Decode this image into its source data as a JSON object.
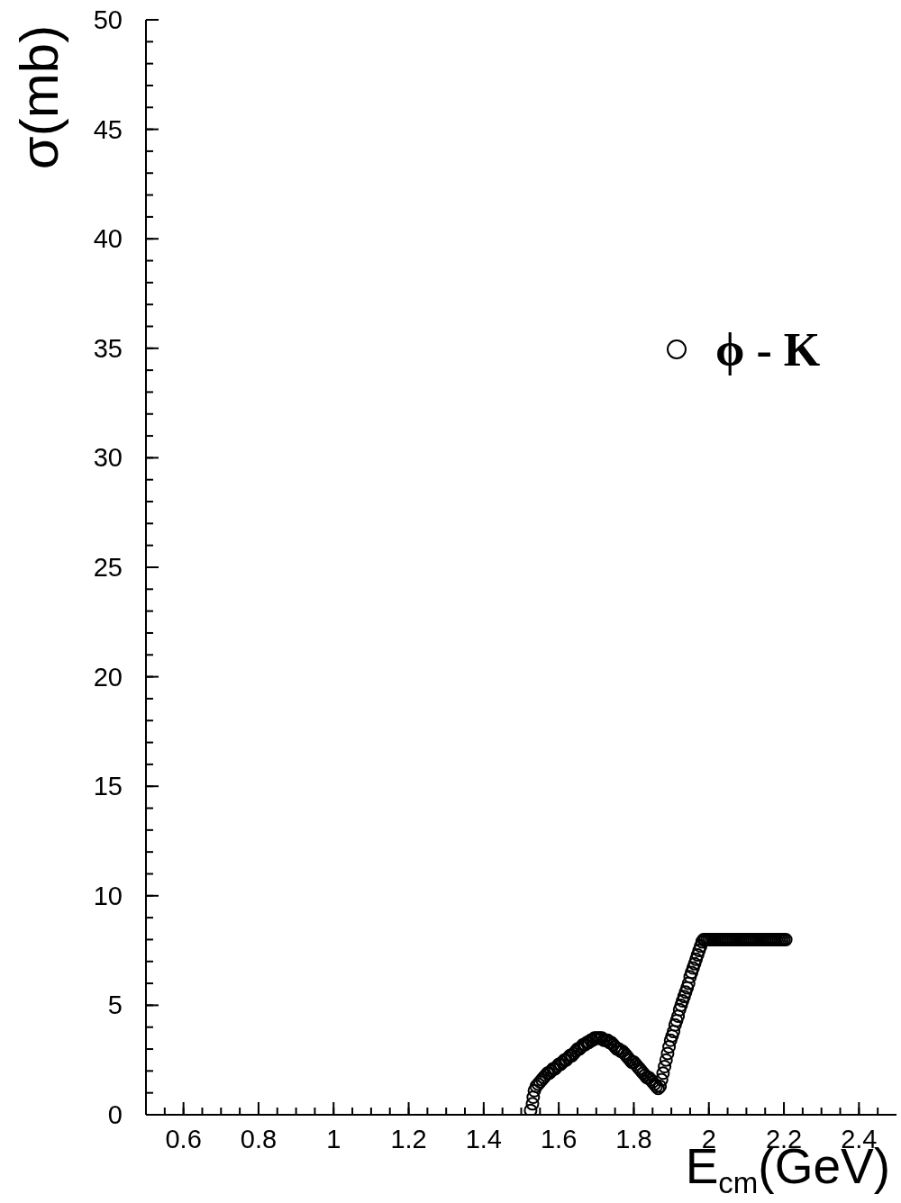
{
  "chart_data": {
    "type": "scatter",
    "xlabel": "E$_{cm}$(GeV)",
    "ylabel": "σ(mb)",
    "x": [
      1.525,
      1.53,
      1.532,
      1.535,
      1.54,
      1.545,
      1.55,
      1.555,
      1.56,
      1.565,
      1.57,
      1.575,
      1.58,
      1.585,
      1.59,
      1.595,
      1.6,
      1.605,
      1.61,
      1.615,
      1.62,
      1.625,
      1.63,
      1.635,
      1.64,
      1.645,
      1.65,
      1.655,
      1.66,
      1.665,
      1.67,
      1.675,
      1.68,
      1.685,
      1.69,
      1.695,
      1.7,
      1.705,
      1.71,
      1.715,
      1.72,
      1.725,
      1.73,
      1.735,
      1.74,
      1.745,
      1.75,
      1.755,
      1.76,
      1.765,
      1.77,
      1.775,
      1.78,
      1.785,
      1.79,
      1.795,
      1.8,
      1.805,
      1.81,
      1.815,
      1.82,
      1.825,
      1.83,
      1.835,
      1.84,
      1.845,
      1.85,
      1.855,
      1.86,
      1.865,
      1.87,
      1.874,
      1.878,
      1.882,
      1.886,
      1.89,
      1.894,
      1.898,
      1.902,
      1.906,
      1.91,
      1.914,
      1.918,
      1.922,
      1.926,
      1.93,
      1.934,
      1.938,
      1.942,
      1.946,
      1.95,
      1.954,
      1.958,
      1.962,
      1.966,
      1.97,
      1.974,
      1.978,
      1.982,
      1.986,
      1.99,
      1.995,
      2.0,
      2.005,
      2.01,
      2.015,
      2.02,
      2.025,
      2.03,
      2.035,
      2.04,
      2.045,
      2.05,
      2.055,
      2.06,
      2.065,
      2.07,
      2.075,
      2.08,
      2.085,
      2.09,
      2.095,
      2.1,
      2.105,
      2.11,
      2.115,
      2.12,
      2.125,
      2.13,
      2.135,
      2.14,
      2.145,
      2.15,
      2.155,
      2.16,
      2.165,
      2.17,
      2.175,
      2.18,
      2.185,
      2.19,
      2.195,
      2.2,
      2.205
    ],
    "series": [
      {
        "name": "ϕ - K",
        "color": "#000000",
        "values": [
          0.2,
          0.5,
          0.8,
          1.1,
          1.3,
          1.4,
          1.5,
          1.6,
          1.7,
          1.8,
          1.9,
          1.9,
          2.0,
          2.1,
          2.1,
          2.2,
          2.3,
          2.3,
          2.4,
          2.5,
          2.5,
          2.6,
          2.7,
          2.7,
          2.8,
          2.9,
          3.0,
          3.0,
          3.1,
          3.2,
          3.2,
          3.3,
          3.3,
          3.4,
          3.4,
          3.5,
          3.5,
          3.5,
          3.5,
          3.5,
          3.4,
          3.4,
          3.4,
          3.3,
          3.3,
          3.2,
          3.1,
          3.0,
          3.0,
          2.9,
          2.9,
          2.8,
          2.7,
          2.6,
          2.5,
          2.4,
          2.4,
          2.3,
          2.2,
          2.1,
          2.0,
          1.9,
          1.8,
          1.7,
          1.7,
          1.6,
          1.5,
          1.4,
          1.3,
          1.2,
          1.3,
          1.6,
          1.9,
          2.2,
          2.5,
          2.8,
          3.1,
          3.4,
          3.6,
          3.8,
          4.1,
          4.3,
          4.5,
          4.8,
          5.0,
          5.2,
          5.4,
          5.6,
          5.8,
          6.0,
          6.3,
          6.5,
          6.7,
          6.9,
          7.1,
          7.3,
          7.5,
          7.7,
          7.9,
          8.0,
          8.0,
          8.0,
          8.0,
          8.0,
          8.0,
          8.0,
          8.0,
          8.0,
          8.0,
          8.0,
          8.0,
          8.0,
          8.0,
          8.0,
          8.0,
          8.0,
          8.0,
          8.0,
          8.0,
          8.0,
          8.0,
          8.0,
          8.0,
          8.0,
          8.0,
          8.0,
          8.0,
          8.0,
          8.0,
          8.0,
          8.0,
          8.0,
          8.0,
          8.0,
          8.0,
          8.0,
          8.0,
          8.0,
          8.0,
          8.0,
          8.0,
          8.0,
          8.0,
          8.0
        ]
      }
    ],
    "xlim": [
      0.5,
      2.5
    ],
    "xticks": [
      {
        "value": 0.55,
        "label": null
      },
      0.6,
      {
        "value": 0.65,
        "label": null
      },
      {
        "value": 0.7,
        "label": null
      },
      {
        "value": 0.75,
        "label": null
      },
      0.8,
      {
        "value": 0.85,
        "label": null
      },
      {
        "value": 0.9,
        "label": null
      },
      {
        "value": 0.95,
        "label": null
      },
      1,
      {
        "value": 1.05,
        "label": null
      },
      {
        "value": 1.1,
        "label": null
      },
      {
        "value": 1.15,
        "label": null
      },
      1.2,
      {
        "value": 1.25,
        "label": null
      },
      {
        "value": 1.3,
        "label": null
      },
      {
        "value": 1.35,
        "label": null
      },
      1.4,
      {
        "value": 1.45,
        "label": null
      },
      {
        "value": 1.5,
        "label": null
      },
      {
        "value": 1.55,
        "label": null
      },
      1.6,
      {
        "value": 1.65,
        "label": null
      },
      {
        "value": 1.7,
        "label": null
      },
      {
        "value": 1.75,
        "label": null
      },
      1.8,
      {
        "value": 1.85,
        "label": null
      },
      {
        "value": 1.9,
        "label": null
      },
      {
        "value": 1.95,
        "label": null
      },
      2,
      {
        "value": 2.05,
        "label": null
      },
      {
        "value": 2.1,
        "label": null
      },
      {
        "value": 2.15,
        "label": null
      },
      2.2,
      {
        "value": 2.25,
        "label": null
      },
      {
        "value": 2.3,
        "label": null
      },
      {
        "value": 2.35,
        "label": null
      },
      2.4,
      {
        "value": 2.45,
        "label": null
      }
    ],
    "ylim": [
      0,
      50
    ],
    "yticks": [
      0,
      {
        "value": 1,
        "label": null
      },
      {
        "value": 2,
        "label": null
      },
      {
        "value": 3,
        "label": null
      },
      {
        "value": 4,
        "label": null
      },
      5,
      {
        "value": 6,
        "label": null
      },
      {
        "value": 7,
        "label": null
      },
      {
        "value": 8,
        "label": null
      },
      {
        "value": 9,
        "label": null
      },
      10,
      {
        "value": 11,
        "label": null
      },
      {
        "value": 12,
        "label": null
      },
      {
        "value": 13,
        "label": null
      },
      {
        "value": 14,
        "label": null
      },
      15,
      {
        "value": 16,
        "label": null
      },
      {
        "value": 17,
        "label": null
      },
      {
        "value": 18,
        "label": null
      },
      {
        "value": 19,
        "label": null
      },
      20,
      {
        "value": 21,
        "label": null
      },
      {
        "value": 22,
        "label": null
      },
      {
        "value": 23,
        "label": null
      },
      {
        "value": 24,
        "label": null
      },
      25,
      {
        "value": 26,
        "label": null
      },
      {
        "value": 27,
        "label": null
      },
      {
        "value": 28,
        "label": null
      },
      {
        "value": 29,
        "label": null
      },
      30,
      {
        "value": 31,
        "label": null
      },
      {
        "value": 32,
        "label": null
      },
      {
        "value": 33,
        "label": null
      },
      {
        "value": 34,
        "label": null
      },
      35,
      {
        "value": 36,
        "label": null
      },
      {
        "value": 37,
        "label": null
      },
      {
        "value": 38,
        "label": null
      },
      {
        "value": 39,
        "label": null
      },
      40,
      {
        "value": 41,
        "label": null
      },
      {
        "value": 42,
        "label": null
      },
      {
        "value": 43,
        "label": null
      },
      {
        "value": 44,
        "label": null
      },
      45,
      {
        "value": 46,
        "label": null
      },
      {
        "value": 47,
        "label": null
      },
      {
        "value": 48,
        "label": null
      },
      {
        "value": 49,
        "label": null
      },
      50
    ],
    "marker": "circle",
    "legend": "top right"
  }
}
